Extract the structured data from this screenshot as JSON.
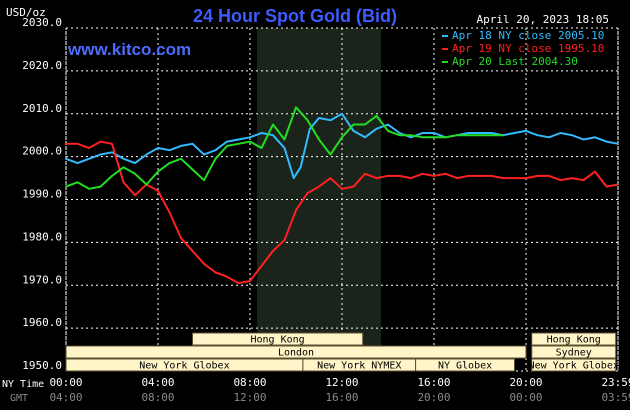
{
  "header": {
    "title": "24 Hour Spot Gold (Bid)",
    "unit": "USD/oz",
    "date": "April 20, 2023 18:05",
    "site": "www.kitco.com"
  },
  "legend": [
    {
      "label": "Apr 18 NY close 2005.10",
      "color": "#33bbff"
    },
    {
      "label": "Apr 19 NY close 1995.10",
      "color": "#ff2020"
    },
    {
      "label": "Apr 20 Last 2004.30",
      "color": "#22dd22"
    }
  ],
  "axis_labels": {
    "ny_time": "NY Time",
    "gmt": "GMT"
  },
  "markets": [
    {
      "name": "Hong Kong",
      "start": 5.5,
      "end": 12.9,
      "row": 0
    },
    {
      "name": "London",
      "start": 0.0,
      "end": 20.0,
      "row": 1
    },
    {
      "name": "New York Globex",
      "start": 0.0,
      "end": 10.3,
      "row": 2
    },
    {
      "name": "New York NYMEX",
      "start": 10.3,
      "end": 15.2,
      "row": 2
    },
    {
      "name": "NY Globex",
      "start": 15.2,
      "end": 19.5,
      "row": 2
    },
    {
      "name": "Hong Kong",
      "start": 20.25,
      "end": 23.9,
      "row": 0
    },
    {
      "name": "Sydney",
      "start": 20.25,
      "end": 23.9,
      "row": 1
    },
    {
      "name": "New York Globex",
      "start": 20.25,
      "end": 23.9,
      "row": 2
    }
  ],
  "colors": {
    "background": "#000000",
    "grid": "#ffffff",
    "shade": "#1b241b",
    "title": "#3d5cff",
    "site": "#4d6bff",
    "text": "#ffffff",
    "axis_sub": "#8a8a8a",
    "market_fill": "#fff5c8",
    "market_text": "#000000"
  },
  "chart_data": {
    "type": "line",
    "xlim": [
      0,
      24
    ],
    "ylim": [
      1950,
      2030
    ],
    "yticks": [
      1950,
      1960,
      1970,
      1980,
      1990,
      2000,
      2010,
      2020,
      2030
    ],
    "ytick_labels": [
      "1950.0",
      "1960.0",
      "1970.0",
      "1980.0",
      "1990.0",
      "2000.0",
      "2010.0",
      "2020.0",
      "2030.0"
    ],
    "xticks": [
      0,
      4,
      8,
      12,
      16,
      20,
      24
    ],
    "xtick_labels": [
      "00:00",
      "04:00",
      "08:00",
      "12:00",
      "16:00",
      "20:00",
      "23:59"
    ],
    "xtick_labels_gmt": [
      "04:00",
      "08:00",
      "12:00",
      "16:00",
      "20:00",
      "00:00",
      "03:59"
    ],
    "shaded_region": [
      8.3,
      13.7
    ],
    "series": [
      {
        "name": "Apr 18 NY close 2005.10",
        "x": [
          0,
          0.5,
          1,
          1.5,
          2,
          2.5,
          3,
          3.5,
          4,
          4.5,
          5,
          5.5,
          6,
          6.5,
          7,
          7.5,
          8,
          8.5,
          9,
          9.5,
          9.9,
          10.2,
          10.6,
          11,
          11.5,
          12,
          12.5,
          13,
          13.5,
          14,
          14.5,
          15,
          15.5,
          16,
          16.5,
          17,
          17.5,
          18,
          18.5,
          19,
          19.5,
          20,
          20.5,
          21,
          21.5,
          22,
          22.5,
          23,
          23.5,
          24
        ],
        "y": [
          1999.5,
          1998.5,
          1999.5,
          2000.5,
          2001.0,
          1999.5,
          1998.5,
          2000.5,
          2002.0,
          2001.5,
          2002.5,
          2003.0,
          2000.5,
          2001.5,
          2003.5,
          2004.0,
          2004.5,
          2005.5,
          2005.0,
          2002.0,
          1995.0,
          1997.5,
          2006.5,
          2009.0,
          2008.5,
          2010.0,
          2006.0,
          2004.5,
          2006.5,
          2007.5,
          2005.5,
          2004.5,
          2005.5,
          2005.5,
          2004.5,
          2005.0,
          2005.5,
          2005.5,
          2005.5,
          2005.0,
          2005.5,
          2006.0,
          2005.0,
          2004.5,
          2005.5,
          2005.0,
          2004.0,
          2004.5,
          2003.5,
          2003.0
        ]
      },
      {
        "name": "Apr 19 NY close 1995.10",
        "x": [
          0,
          0.5,
          1,
          1.5,
          2,
          2.5,
          3,
          3.5,
          4,
          4.5,
          5,
          5.5,
          6,
          6.5,
          7,
          7.5,
          8,
          8.5,
          9,
          9.5,
          10,
          10.5,
          11,
          11.5,
          12,
          12.5,
          13,
          13.5,
          14,
          14.5,
          15,
          15.5,
          16,
          16.5,
          17,
          17.5,
          18,
          18.5,
          19,
          19.5,
          20,
          20.5,
          21,
          21.5,
          22,
          22.5,
          23,
          23.5,
          24
        ],
        "y": [
          2003.0,
          2003.0,
          2002.0,
          2003.5,
          2003.0,
          1994.0,
          1991.0,
          1993.5,
          1992.0,
          1987.0,
          1981.0,
          1978.0,
          1975.0,
          1973.0,
          1972.0,
          1970.5,
          1971.0,
          1974.5,
          1978.0,
          1980.5,
          1987.5,
          1991.5,
          1993.0,
          1995.0,
          1992.5,
          1993.0,
          1996.0,
          1995.0,
          1995.5,
          1995.5,
          1995.0,
          1996.0,
          1995.5,
          1996.0,
          1995.0,
          1995.5,
          1995.5,
          1995.5,
          1995.0,
          1995.0,
          1995.0,
          1995.5,
          1995.5,
          1994.5,
          1995.0,
          1994.5,
          1996.5,
          1993.0,
          1993.5
        ]
      },
      {
        "name": "Apr 20 Last 2004.30",
        "x": [
          0,
          0.5,
          1,
          1.5,
          2,
          2.5,
          3,
          3.5,
          4,
          4.5,
          5,
          5.5,
          6,
          6.5,
          7,
          7.5,
          8,
          8.5,
          9,
          9.5,
          10,
          10.5,
          11,
          11.5,
          12,
          12.5,
          13,
          13.5,
          14,
          14.5,
          15,
          15.5,
          16,
          16.5,
          17,
          17.5,
          18,
          18.5,
          19
        ],
        "y": [
          1993.0,
          1994.0,
          1992.5,
          1993.0,
          1995.5,
          1997.5,
          1996.0,
          1993.5,
          1996.5,
          1998.5,
          1999.5,
          1997.0,
          1994.5,
          1999.5,
          2002.5,
          2003.0,
          2003.5,
          2002.0,
          2007.5,
          2004.0,
          2011.5,
          2008.5,
          2004.0,
          2000.5,
          2004.5,
          2007.5,
          2007.5,
          2009.5,
          2006.0,
          2005.0,
          2005.0,
          2004.5,
          2004.5,
          2004.5,
          2005.0,
          2005.0,
          2005.0,
          2005.0,
          2005.0
        ]
      }
    ]
  }
}
